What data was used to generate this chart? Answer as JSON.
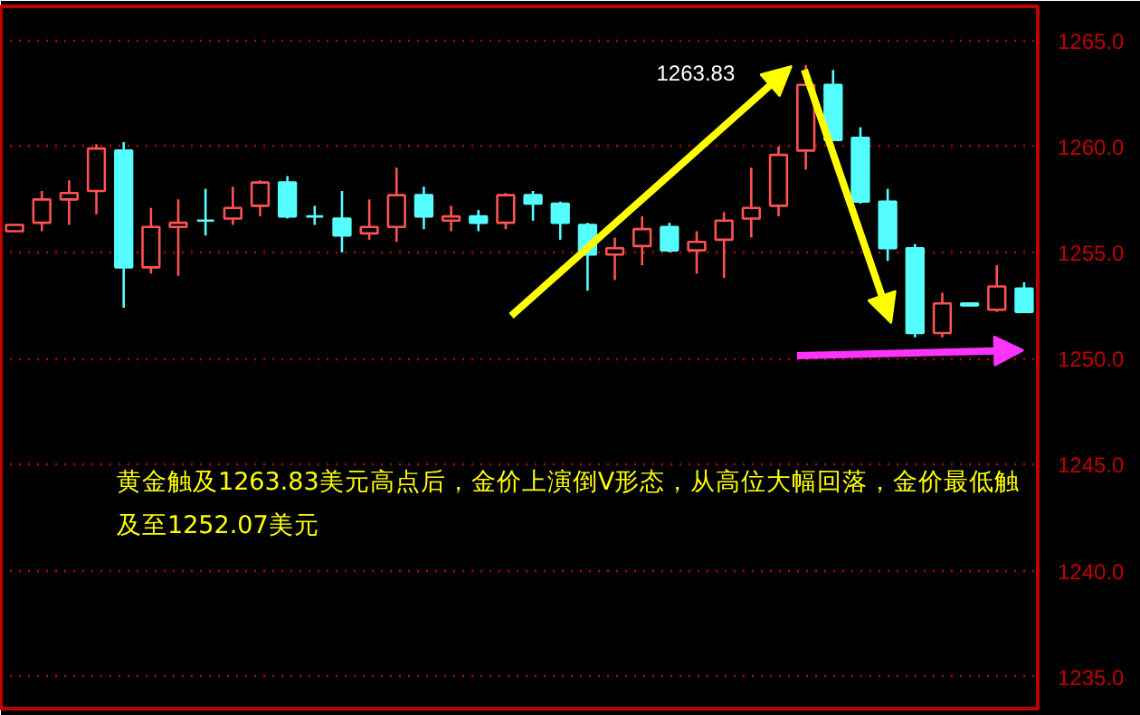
{
  "chart_data": {
    "type": "candlestick",
    "categories": [
      null,
      null,
      null,
      null,
      null,
      null,
      null,
      null,
      null,
      null,
      null,
      null,
      null,
      null,
      null,
      null,
      null,
      null,
      null,
      null,
      null,
      null,
      null,
      null,
      null,
      null,
      null,
      null,
      null,
      null,
      null,
      null,
      null,
      null,
      null,
      null,
      null,
      null
    ],
    "ohlc": [
      [
        1256.0,
        1256.3,
        1256.0,
        1256.3
      ],
      [
        1256.4,
        1257.9,
        1256.0,
        1257.5
      ],
      [
        1257.5,
        1258.4,
        1256.3,
        1257.8
      ],
      [
        1257.9,
        1260.1,
        1256.8,
        1259.9
      ],
      [
        1259.8,
        1260.2,
        1252.4,
        1254.3
      ],
      [
        1254.3,
        1257.1,
        1254.0,
        1256.2
      ],
      [
        1256.2,
        1257.5,
        1253.9,
        1256.4
      ],
      [
        1256.5,
        1258.0,
        1255.8,
        1256.5
      ],
      [
        1256.6,
        1258.1,
        1256.3,
        1257.1
      ],
      [
        1257.2,
        1258.4,
        1256.7,
        1258.3
      ],
      [
        1258.3,
        1258.6,
        1256.6,
        1256.7
      ],
      [
        1256.7,
        1257.2,
        1256.3,
        1256.7
      ],
      [
        1256.6,
        1257.9,
        1255.0,
        1255.8
      ],
      [
        1255.9,
        1257.5,
        1255.6,
        1256.2
      ],
      [
        1256.2,
        1259.0,
        1255.5,
        1257.7
      ],
      [
        1257.7,
        1258.1,
        1256.1,
        1256.7
      ],
      [
        1256.5,
        1257.2,
        1256.0,
        1256.7
      ],
      [
        1256.7,
        1257.0,
        1256.0,
        1256.4
      ],
      [
        1256.4,
        1257.8,
        1256.1,
        1257.7
      ],
      [
        1257.7,
        1257.9,
        1256.5,
        1257.3
      ],
      [
        1257.3,
        1257.4,
        1255.6,
        1256.4
      ],
      [
        1256.3,
        1256.4,
        1253.2,
        1254.9
      ],
      [
        1254.9,
        1255.7,
        1253.7,
        1255.2
      ],
      [
        1255.3,
        1256.7,
        1254.4,
        1256.1
      ],
      [
        1256.2,
        1256.4,
        1255.0,
        1255.1
      ],
      [
        1255.1,
        1256.0,
        1254.0,
        1255.5
      ],
      [
        1255.6,
        1256.9,
        1253.8,
        1256.5
      ],
      [
        1256.6,
        1259.0,
        1255.7,
        1257.1
      ],
      [
        1257.2,
        1260.0,
        1256.7,
        1259.6
      ],
      [
        1259.8,
        1263.83,
        1258.9,
        1262.9
      ],
      [
        1262.9,
        1263.6,
        1260.3,
        1260.3
      ],
      [
        1260.4,
        1260.9,
        1257.3,
        1257.4
      ],
      [
        1257.4,
        1258.0,
        1254.6,
        1255.2
      ],
      [
        1255.2,
        1255.4,
        1251.0,
        1251.2
      ],
      [
        1251.2,
        1253.1,
        1251.0,
        1252.6
      ],
      [
        1252.6,
        1252.6,
        1252.5,
        1252.5
      ],
      [
        1252.3,
        1254.4,
        1252.2,
        1253.4
      ],
      [
        1253.3,
        1253.6,
        1252.2,
        1252.2
      ]
    ],
    "colors": [
      "#ff5252",
      "#ff5252",
      "#ff5252",
      "#ff5252",
      "#55ffff",
      "#ff5252",
      "#ff5252",
      "#55ffff",
      "#ff5252",
      "#ff5252",
      "#55ffff",
      "#55ffff",
      "#55ffff",
      "#ff5252",
      "#ff5252",
      "#55ffff",
      "#ff5252",
      "#55ffff",
      "#ff5252",
      "#55ffff",
      "#55ffff",
      "#55ffff",
      "#ff5252",
      "#ff5252",
      "#55ffff",
      "#ff5252",
      "#ff5252",
      "#ff5252",
      "#ff5252",
      "#ff5252",
      "#55ffff",
      "#55ffff",
      "#55ffff",
      "#55ffff",
      "#ff5252",
      "#55ffff",
      "#ff5252",
      "#55ffff"
    ],
    "ylim": [
      1233.5,
      1266.6
    ],
    "yticks": [
      {
        "value": 1235,
        "label": "1235.0"
      },
      {
        "value": 1240,
        "label": "1240.0"
      },
      {
        "value": 1245,
        "label": "1245.0"
      },
      {
        "value": 1250,
        "label": "1250.0"
      },
      {
        "value": 1255,
        "label": "1255.0"
      },
      {
        "value": 1260,
        "label": "1260.0"
      },
      {
        "value": 1265,
        "label": "1265.0"
      }
    ],
    "grid": "y",
    "tick_labels": "y",
    "annotations": [
      "1263.83",
      "黄金触及1263.83美元高点后，金价上演倒V形态，从高位大幅回落，金价最低触及至1252.07美元"
    ]
  }
}
